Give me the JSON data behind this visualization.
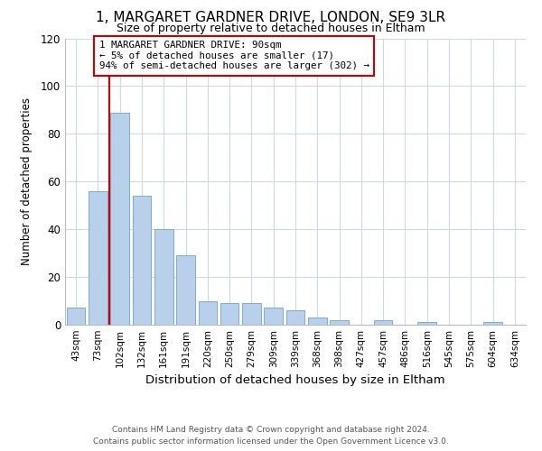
{
  "title": "1, MARGARET GARDNER DRIVE, LONDON, SE9 3LR",
  "subtitle": "Size of property relative to detached houses in Eltham",
  "xlabel": "Distribution of detached houses by size in Eltham",
  "ylabel": "Number of detached properties",
  "categories": [
    "43sqm",
    "73sqm",
    "102sqm",
    "132sqm",
    "161sqm",
    "191sqm",
    "220sqm",
    "250sqm",
    "279sqm",
    "309sqm",
    "339sqm",
    "368sqm",
    "398sqm",
    "427sqm",
    "457sqm",
    "486sqm",
    "516sqm",
    "545sqm",
    "575sqm",
    "604sqm",
    "634sqm"
  ],
  "values": [
    7,
    56,
    89,
    54,
    40,
    29,
    10,
    9,
    9,
    7,
    6,
    3,
    2,
    0,
    2,
    0,
    1,
    0,
    0,
    1,
    0
  ],
  "bar_color": "#b8d0ea",
  "bar_edge_color": "#7aadd4",
  "ylim": [
    0,
    120
  ],
  "yticks": [
    0,
    20,
    40,
    60,
    80,
    100,
    120
  ],
  "vline_x_idx": 1.5,
  "vline_color": "#cc0000",
  "annotation_box_line1": "1 MARGARET GARDNER DRIVE: 90sqm",
  "annotation_box_line2": "← 5% of detached houses are smaller (17)",
  "annotation_box_line3": "94% of semi-detached houses are larger (302) →",
  "annotation_box_color": "#cc0000",
  "footer_line1": "Contains HM Land Registry data © Crown copyright and database right 2024.",
  "footer_line2": "Contains public sector information licensed under the Open Government Licence v3.0.",
  "background_color": "#ffffff",
  "grid_color": "#cdd8e8"
}
